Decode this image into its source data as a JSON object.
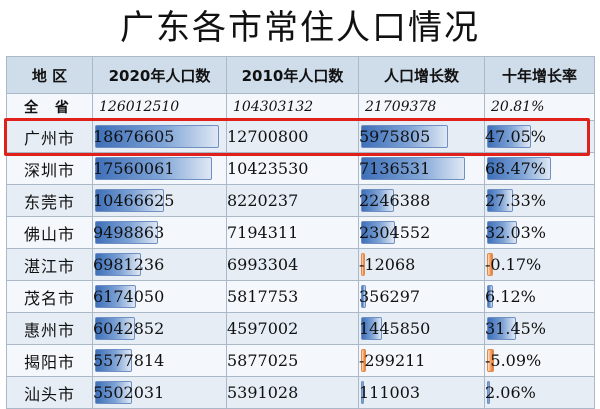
{
  "title": "广东各市常住人口情况",
  "headers": [
    "地 区",
    "2020年人口数",
    "2010年人口数",
    "人口增长数",
    "十年增长率"
  ],
  "total": {
    "region": "全 省",
    "pop2020": "126012510",
    "pop2010": "104303132",
    "growth": "21709378",
    "rate": "20.81%"
  },
  "rows": [
    {
      "region": "广州市",
      "pop2020": "18676605",
      "pop2010": "12700800",
      "growth": "5975805",
      "rate": "47.05%",
      "pop2020_value": 18676605,
      "growth_value": 5975805,
      "rate_value": 47.05,
      "highlighted": true
    },
    {
      "region": "深圳市",
      "pop2020": "17560061",
      "pop2010": "10423530",
      "growth": "7136531",
      "rate": "68.47%",
      "pop2020_value": 17560061,
      "growth_value": 7136531,
      "rate_value": 68.47
    },
    {
      "region": "东莞市",
      "pop2020": "10466625",
      "pop2010": "8220237",
      "growth": "2246388",
      "rate": "27.33%",
      "pop2020_value": 10466625,
      "growth_value": 2246388,
      "rate_value": 27.33
    },
    {
      "region": "佛山市",
      "pop2020": "9498863",
      "pop2010": "7194311",
      "growth": "2304552",
      "rate": "32.03%",
      "pop2020_value": 9498863,
      "growth_value": 2304552,
      "rate_value": 32.03
    },
    {
      "region": "湛江市",
      "pop2020": "6981236",
      "pop2010": "6993304",
      "growth": "-12068",
      "rate": "-0.17%",
      "pop2020_value": 6981236,
      "growth_value": -12068,
      "rate_value": -0.17
    },
    {
      "region": "茂名市",
      "pop2020": "6174050",
      "pop2010": "5817753",
      "growth": "356297",
      "rate": "6.12%",
      "pop2020_value": 6174050,
      "growth_value": 356297,
      "rate_value": 6.12
    },
    {
      "region": "惠州市",
      "pop2020": "6042852",
      "pop2010": "4597002",
      "growth": "1445850",
      "rate": "31.45%",
      "pop2020_value": 6042852,
      "growth_value": 1445850,
      "rate_value": 31.45
    },
    {
      "region": "揭阳市",
      "pop2020": "5577814",
      "pop2010": "5877025",
      "growth": "-299211",
      "rate": "-5.09%",
      "pop2020_value": 5577814,
      "growth_value": -299211,
      "rate_value": -5.09
    },
    {
      "region": "汕头市",
      "pop2020": "5502031",
      "pop2010": "5391028",
      "growth": "111003",
      "rate": "2.06%",
      "pop2020_value": 5502031,
      "growth_value": 111003,
      "rate_value": 2.06
    }
  ],
  "colors": {
    "header_bg": "#cfdcea",
    "bar_blue": "#3e6fb8",
    "bar_orange": "#e8782f",
    "highlight_border": "#e0201b"
  }
}
